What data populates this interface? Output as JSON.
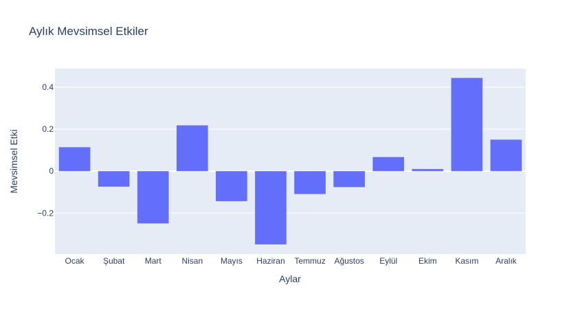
{
  "chart_data": {
    "type": "bar",
    "title": "Aylık Mevsimsel Etkiler",
    "xlabel": "Aylar",
    "ylabel": "Mevsimsel Etki",
    "categories": [
      "Ocak",
      "Şubat",
      "Mart",
      "Nisan",
      "Mayıs",
      "Haziran",
      "Temmuz",
      "Ağustos",
      "Eylül",
      "Ekim",
      "Kasım",
      "Aralık"
    ],
    "values": [
      0.114,
      -0.074,
      -0.249,
      0.218,
      -0.143,
      -0.349,
      -0.109,
      -0.076,
      0.067,
      0.01,
      0.444,
      0.15
    ],
    "ylim": [
      -0.395,
      0.488
    ],
    "yticks": [
      -0.2,
      0,
      0.2,
      0.4
    ],
    "ytick_labels": [
      "−0.2",
      "0",
      "0.2",
      "0.4"
    ],
    "grid": true,
    "colors": {
      "bar": "#636efa",
      "plot_bg": "#e5ecf6",
      "grid": "#ffffff",
      "text": "#2a3f5f"
    }
  }
}
